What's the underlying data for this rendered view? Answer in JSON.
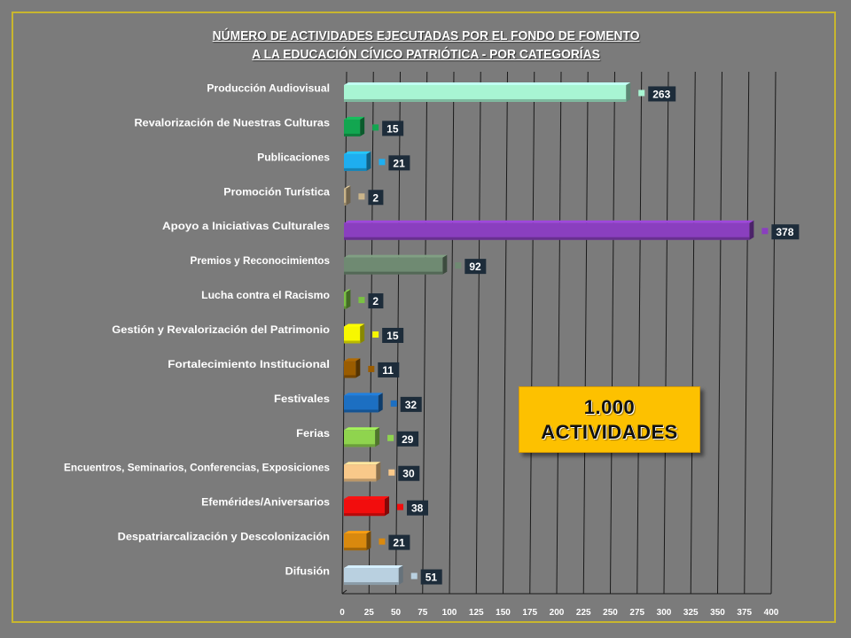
{
  "title": {
    "line1": "NÚMERO DE ACTIVIDADES EJECUTADAS POR EL FONDO DE FOMENTO",
    "line2": "A LA EDUCACIÓN CÍVICO PATRIÓTICA - POR CATEGORÍAS"
  },
  "callout": {
    "value": "1.000",
    "label": "ACTIVIDADES"
  },
  "chart_data": {
    "type": "bar",
    "orientation": "horizontal",
    "title": "NÚMERO DE ACTIVIDADES EJECUTADAS POR EL FONDO DE FOMENTO A LA EDUCACIÓN CÍVICO PATRIÓTICA - POR CATEGORÍAS",
    "categories": [
      "Producción Audiovisual",
      "Revalorización de Nuestras Culturas",
      "Publicaciones",
      "Promoción Turística",
      "Apoyo a Iniciativas Culturales",
      "Premios y Reconocimientos",
      "Lucha contra el Racismo",
      "Gestión y Revalorización del Patrimonio",
      "Fortalecimiento Institucional",
      "Festivales",
      "Ferias",
      "Encuentros, Seminarios, Conferencias, Exposiciones",
      "Efemérides/Aniversarios",
      "Despatriarcalización y Descolonización",
      "Difusión"
    ],
    "values": [
      263,
      15,
      21,
      2,
      378,
      92,
      2,
      15,
      11,
      32,
      29,
      30,
      38,
      21,
      51
    ],
    "colors": [
      "#a8f5d3",
      "#12a650",
      "#1eaef0",
      "#c9b48a",
      "#8a3fbf",
      "#6f8a72",
      "#7ac143",
      "#f7f700",
      "#9a5c00",
      "#1c6fc2",
      "#8fd44e",
      "#f9c98a",
      "#f20d0d",
      "#d9890e",
      "#b9d0e0"
    ],
    "xlim": [
      0,
      400
    ],
    "xticks": [
      0,
      25,
      50,
      75,
      100,
      125,
      150,
      175,
      200,
      225,
      250,
      275,
      300,
      325,
      350,
      375,
      400
    ],
    "grid": true,
    "data_labels": true
  }
}
